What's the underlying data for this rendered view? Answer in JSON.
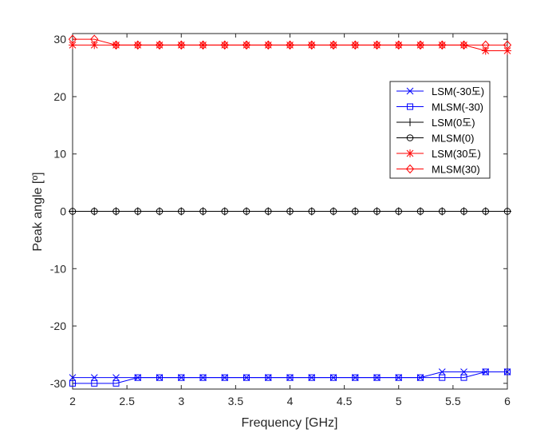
{
  "chart_data": {
    "type": "line",
    "title": "",
    "xlabel": "Frequency [GHz]",
    "ylabel": "Peak angle [º]",
    "xlim": [
      2,
      6
    ],
    "ylim": [
      -31,
      31
    ],
    "xticks": [
      2,
      2.5,
      3,
      3.5,
      4,
      4.5,
      5,
      5.5,
      6
    ],
    "xtick_labels": [
      "2",
      "2.5",
      "3",
      "3.5",
      "4",
      "4.5",
      "5",
      "5.5",
      "6"
    ],
    "yticks": [
      -30,
      -20,
      -10,
      0,
      10,
      20,
      30
    ],
    "ytick_labels": [
      "-30",
      "-20",
      "-10",
      "0",
      "10",
      "20",
      "30"
    ],
    "grid": false,
    "legend_position": "upper-right",
    "x": [
      2,
      2.2,
      2.4,
      2.6,
      2.8,
      3,
      3.2,
      3.4,
      3.6,
      3.8,
      4,
      4.2,
      4.4,
      4.6,
      4.8,
      5,
      5.2,
      5.4,
      5.6,
      5.8,
      6
    ],
    "series": [
      {
        "name": "LSM(-30도)",
        "color": "#0000ff",
        "marker": "x",
        "values": [
          -29,
          -29,
          -29,
          -29,
          -29,
          -29,
          -29,
          -29,
          -29,
          -29,
          -29,
          -29,
          -29,
          -29,
          -29,
          -29,
          -29,
          -28,
          -28,
          -28,
          -28
        ]
      },
      {
        "name": "MLSM(-30)",
        "color": "#0000ff",
        "marker": "square",
        "values": [
          -30,
          -30,
          -30,
          -29,
          -29,
          -29,
          -29,
          -29,
          -29,
          -29,
          -29,
          -29,
          -29,
          -29,
          -29,
          -29,
          -29,
          -29,
          -29,
          -28,
          -28
        ]
      },
      {
        "name": "LSM(0도)",
        "color": "#000000",
        "marker": "plus",
        "values": [
          0,
          0,
          0,
          0,
          0,
          0,
          0,
          0,
          0,
          0,
          0,
          0,
          0,
          0,
          0,
          0,
          0,
          0,
          0,
          0,
          0
        ]
      },
      {
        "name": "MLSM(0)",
        "color": "#000000",
        "marker": "circle",
        "values": [
          0,
          0,
          0,
          0,
          0,
          0,
          0,
          0,
          0,
          0,
          0,
          0,
          0,
          0,
          0,
          0,
          0,
          0,
          0,
          0,
          0
        ]
      },
      {
        "name": "LSM(30도)",
        "color": "#ff0000",
        "marker": "asterisk",
        "values": [
          29,
          29,
          29,
          29,
          29,
          29,
          29,
          29,
          29,
          29,
          29,
          29,
          29,
          29,
          29,
          29,
          29,
          29,
          29,
          28,
          28
        ]
      },
      {
        "name": "MLSM(30)",
        "color": "#ff0000",
        "marker": "diamond",
        "values": [
          30,
          30,
          29,
          29,
          29,
          29,
          29,
          29,
          29,
          29,
          29,
          29,
          29,
          29,
          29,
          29,
          29,
          29,
          29,
          29,
          29
        ]
      }
    ]
  }
}
